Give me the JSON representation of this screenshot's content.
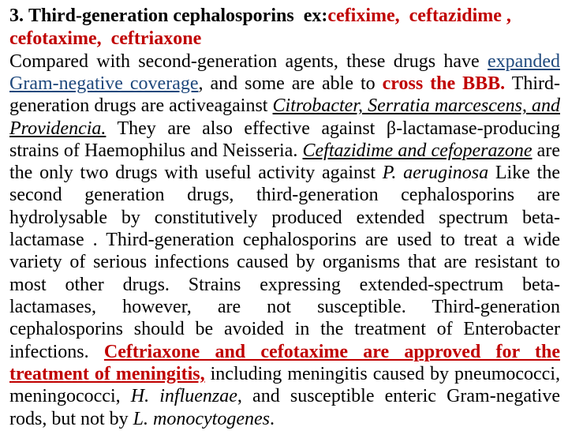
{
  "colors": {
    "red": "#c00000",
    "blue": "#1f497d",
    "black": "#000000",
    "background": "#ffffff"
  },
  "typography": {
    "font_family": "Times New Roman",
    "heading_fontsize": 24,
    "body_fontsize": 24,
    "line_height": 1.18
  },
  "heading": {
    "number": "3.",
    "title": "Third-generation cephalosporins",
    "ex_label": "ex:",
    "drug1": "cefixime,",
    "drug2": "ceftazidime ,",
    "drug3": "cefotaxime,",
    "drug4": "ceftriaxone"
  },
  "body": {
    "t1": "Compared with second-generation agents, these drugs have ",
    "t2": "expanded Gram-negative coverage",
    "t3": ", and some are able to ",
    "t4": "cross the BBB.",
    "t5": " Third-generation drugs are activeagainst ",
    "t6": "Citrobacter, Serratia marcescens, and Providencia.",
    "t7": " They are also effective against β-lactamase-producing strains of Haemophilus and Neisseria. ",
    "t8": "Ceftazidime and cefoperazone",
    "t9": " are the only two drugs with useful activity against ",
    "t10": "P. aeruginosa",
    "t11": " Like the second generation drugs, third-generation cephalosporins are hydrolysable by constitutively produced extended spectrum beta-lactamase . Third-generation cephalosporins are used to treat a wide variety of serious infections caused by organisms that are resistant to most other drugs. Strains expressing extended-spectrum beta-lactamases, however, are not susceptible. Third-generation cephalosporins should be avoided in the treatment of Enterobacter infections. ",
    "t12": "Ceftriaxone and cefotaxime are approved for the treatment of meningitis,",
    "t13": " including meningitis caused by pneumococci, meningococci, ",
    "t14": "H. influenzae",
    "t15": ", and susceptible enteric Gram-negative rods, but not by ",
    "t16": "L. monocytogenes",
    "t17": "."
  }
}
